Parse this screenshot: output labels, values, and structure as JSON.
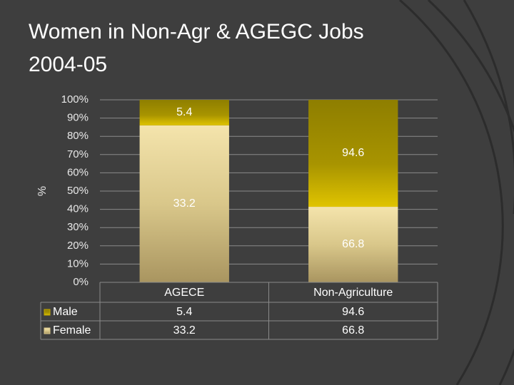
{
  "chart_data": {
    "type": "stacked_percent_bar",
    "title": "Women in Non-Agr & AGEGC Jobs",
    "subtitle": "2004-05",
    "y_label": "%",
    "categories": [
      "AGECE",
      "Non-Agriculture"
    ],
    "series": [
      {
        "name": "Male",
        "color": "#c2a800",
        "values": [
          5.4,
          94.6
        ]
      },
      {
        "name": "Female",
        "color": "#d9c78a",
        "values": [
          33.2,
          66.8
        ]
      }
    ],
    "ylim": [
      0,
      100
    ],
    "yticks": [
      {
        "value": 0,
        "label": "0%"
      },
      {
        "value": 10,
        "label": "10%"
      },
      {
        "value": 20,
        "label": "20%"
      },
      {
        "value": 30,
        "label": "30%"
      },
      {
        "value": 40,
        "label": "40%"
      },
      {
        "value": 50,
        "label": "50%"
      },
      {
        "value": 60,
        "label": "60%"
      },
      {
        "value": 70,
        "label": "70%"
      },
      {
        "value": 80,
        "label": "80%"
      },
      {
        "value": 90,
        "label": "90%"
      },
      {
        "value": 100,
        "label": "100%"
      }
    ],
    "grid": true,
    "data_table": true
  }
}
